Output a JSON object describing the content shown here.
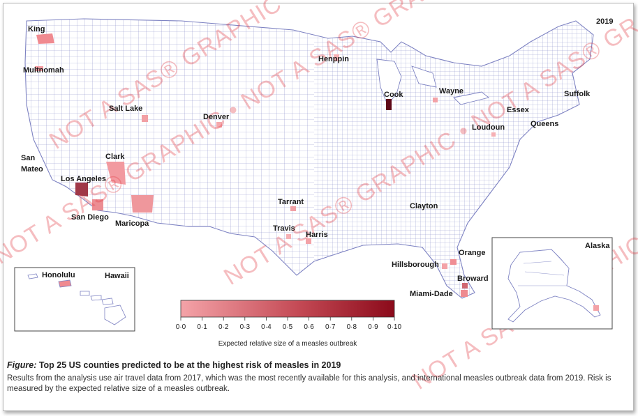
{
  "year": "2019",
  "inset_labels": {
    "hawaii": "Hawaii",
    "alaska": "Alaska"
  },
  "counties": [
    {
      "name": "King"
    },
    {
      "name": "Multnomah"
    },
    {
      "name": "Salt Lake"
    },
    {
      "name": "San"
    },
    {
      "name": "Mateo"
    },
    {
      "name": "Clark"
    },
    {
      "name": "Los Angeles"
    },
    {
      "name": "San Diego"
    },
    {
      "name": "Maricopa"
    },
    {
      "name": "Denver"
    },
    {
      "name": "Henppin"
    },
    {
      "name": "Cook"
    },
    {
      "name": "Wayne"
    },
    {
      "name": "Suffolk"
    },
    {
      "name": "Essex"
    },
    {
      "name": "Queens"
    },
    {
      "name": "Loudoun"
    },
    {
      "name": "Tarrant"
    },
    {
      "name": "Travis"
    },
    {
      "name": "Harris"
    },
    {
      "name": "Clayton"
    },
    {
      "name": "Orange"
    },
    {
      "name": "Hillsborough"
    },
    {
      "name": "Broward"
    },
    {
      "name": "Miami-Dade"
    },
    {
      "name": "Honolulu"
    }
  ],
  "legend": {
    "title": "Expected relative size of a measles outbreak",
    "ticks": [
      "0·0",
      "0·1",
      "0·2",
      "0·3",
      "0·4",
      "0·5",
      "0·6",
      "0·7",
      "0·8",
      "0·9",
      "0·10"
    ],
    "color_low": "#f4a3a8",
    "color_high": "#8b0a1a"
  },
  "watermark": "NOT A SAS® GRAPHIC  •  NOT A SAS® GRAPHIC",
  "caption": {
    "label": "Figure:",
    "title": "Top 25 US counties predicted to be at the highest risk of measles in 2019",
    "body": "Results from the analysis use air travel data from 2017, which was the most recently available for this analysis, and international measles outbreak data from 2019. Risk is measured by the expected relative size of a measles outbreak."
  }
}
